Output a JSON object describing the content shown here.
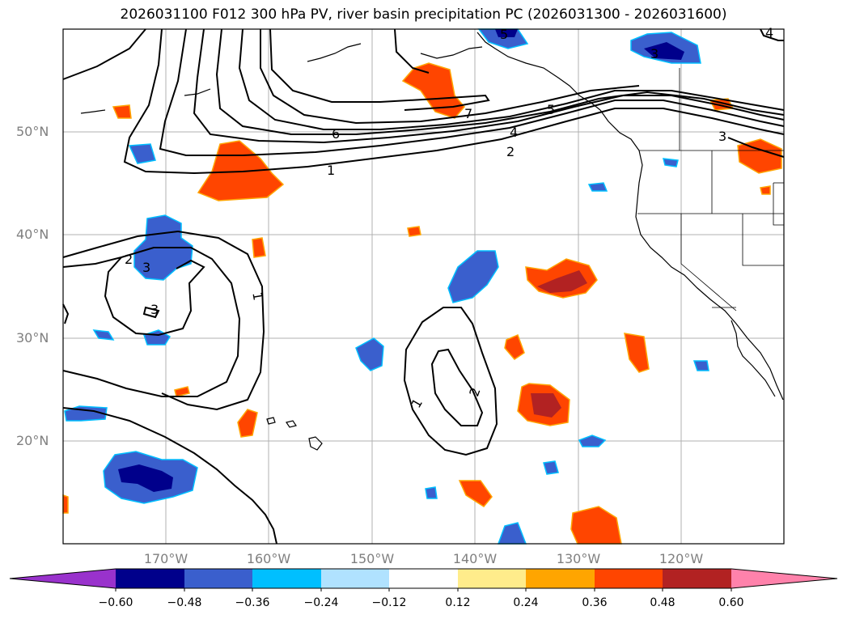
{
  "title": "2026031100 F012 300 hPa PV, river basin precipitation PC (2026031300 - 2026031600)",
  "map": {
    "latitude_labels": [
      "50°N",
      "40°N",
      "30°N",
      "20°N"
    ],
    "longitude_labels": [
      "170°W",
      "160°W",
      "150°W",
      "140°W",
      "130°W",
      "120°W"
    ],
    "contour_labels": [
      "1",
      "2",
      "3",
      "4",
      "5",
      "6",
      "7",
      "1",
      "2",
      "3",
      "1",
      "2",
      "3",
      "4",
      "5",
      "3"
    ]
  },
  "colorbar": {
    "tick_labels": [
      "−0.60",
      "−0.48",
      "−0.36",
      "−0.24",
      "−0.12",
      "0.12",
      "0.24",
      "0.36",
      "0.48",
      "0.60"
    ],
    "colors": [
      "#9932cc",
      "#00008b",
      "#3a5fcd",
      "#00bfff",
      "#b0e2ff",
      "#ffffff",
      "#ffec8b",
      "#ffa500",
      "#ff4500",
      "#b22222",
      "#ff82ab"
    ]
  }
}
